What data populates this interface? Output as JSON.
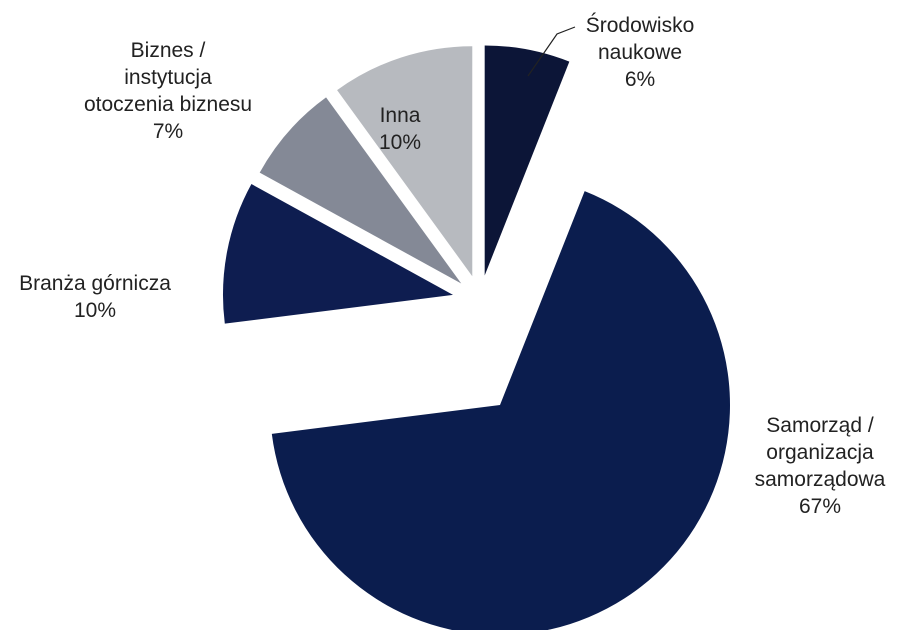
{
  "chart_data": {
    "type": "pie",
    "title": "",
    "unit": "%",
    "slices": [
      {
        "label": [
          "Środowisko",
          "naukowe"
        ],
        "value": 6,
        "display": "6%",
        "color": "#0c1537"
      },
      {
        "label": [
          "Samorząd /",
          "organizacja",
          "samorządowa"
        ],
        "value": 67,
        "display": "67%",
        "color": "#0b1d4e"
      },
      {
        "label": [
          "Branża górnicza"
        ],
        "value": 10,
        "display": "10%",
        "color": "#0e1d50"
      },
      {
        "label": [
          "Biznes /",
          "instytucja",
          "otoczenia biznesu"
        ],
        "value": 7,
        "display": "7%",
        "color": "#848996"
      },
      {
        "label": [
          "Inna"
        ],
        "value": 10,
        "display": "10%",
        "color": "#b7babf"
      }
    ]
  }
}
